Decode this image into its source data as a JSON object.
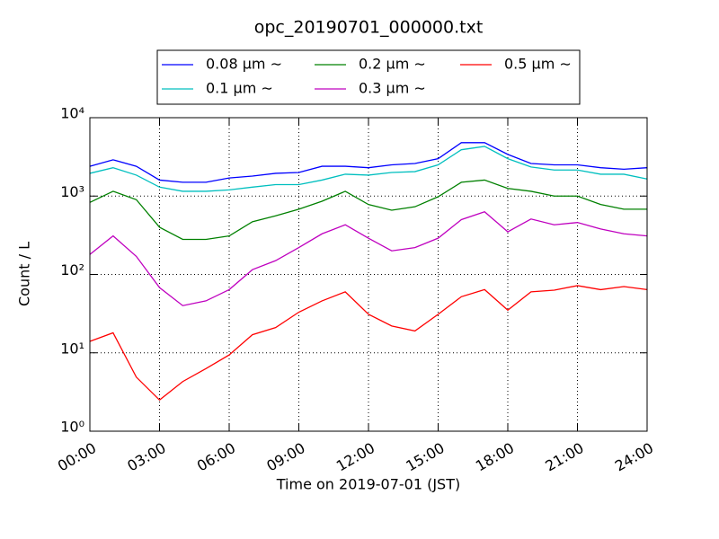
{
  "chart_data": {
    "type": "line",
    "title": "opc_20190701_000000.txt",
    "x_label": "Time on 2019-07-01 (JST)",
    "y_label": "Count / L",
    "x": [
      0,
      1,
      2,
      3,
      4,
      5,
      6,
      7,
      8,
      9,
      10,
      11,
      12,
      13,
      14,
      15,
      16,
      17,
      18,
      19,
      20,
      21,
      22,
      23,
      24
    ],
    "series": [
      {
        "name": "0.08 μm ∼",
        "color": "#0000ff",
        "values": [
          2400,
          2900,
          2400,
          1600,
          1500,
          1500,
          1700,
          1800,
          1950,
          2000,
          2400,
          2400,
          2300,
          2500,
          2600,
          3000,
          4800,
          4800,
          3400,
          2600,
          2500,
          2500,
          2300,
          2200,
          2300
        ]
      },
      {
        "name": "0.1 μm ∼",
        "color": "#00bfbf",
        "values": [
          1950,
          2300,
          1850,
          1300,
          1150,
          1150,
          1200,
          1300,
          1400,
          1400,
          1600,
          1900,
          1850,
          2000,
          2050,
          2500,
          3900,
          4300,
          3000,
          2350,
          2150,
          2150,
          1900,
          1900,
          1650
        ]
      },
      {
        "name": "0.2 μm ∼",
        "color": "#008000",
        "values": [
          830,
          1150,
          900,
          400,
          280,
          280,
          310,
          470,
          560,
          680,
          860,
          1150,
          780,
          660,
          730,
          980,
          1500,
          1600,
          1250,
          1150,
          1000,
          1000,
          780,
          680,
          680
        ]
      },
      {
        "name": "0.3 μm ∼",
        "color": "#bf00bf",
        "values": [
          180,
          310,
          170,
          68,
          40,
          46,
          64,
          115,
          150,
          220,
          330,
          430,
          290,
          200,
          220,
          290,
          500,
          630,
          350,
          510,
          430,
          460,
          380,
          330,
          310
        ]
      },
      {
        "name": "0.5 μm ∼",
        "color": "#ff0000",
        "values": [
          14,
          18,
          4.9,
          2.5,
          4.3,
          6.3,
          9.4,
          17,
          21,
          33,
          46,
          60,
          31,
          22,
          19,
          31,
          52,
          64,
          35,
          60,
          63,
          72,
          64,
          70,
          64
        ]
      }
    ],
    "xlim": [
      0,
      24
    ],
    "xticks": [
      {
        "value": 0,
        "label": "00:00"
      },
      {
        "value": 3,
        "label": "03:00"
      },
      {
        "value": 6,
        "label": "06:00"
      },
      {
        "value": 9,
        "label": "09:00"
      },
      {
        "value": 12,
        "label": "12:00"
      },
      {
        "value": 15,
        "label": "15:00"
      },
      {
        "value": 18,
        "label": "18:00"
      },
      {
        "value": 21,
        "label": "21:00"
      },
      {
        "value": 24,
        "label": "24:00"
      }
    ],
    "ylim": [
      1,
      10000
    ],
    "yticks": [
      {
        "value": 1,
        "label": "10⁰"
      },
      {
        "value": 10,
        "label": "10¹"
      },
      {
        "value": 100,
        "label": "10²"
      },
      {
        "value": 1000,
        "label": "10³"
      },
      {
        "value": 10000,
        "label": "10⁴"
      }
    ],
    "y_scale": "log",
    "grid": true,
    "legend": "upper center"
  }
}
